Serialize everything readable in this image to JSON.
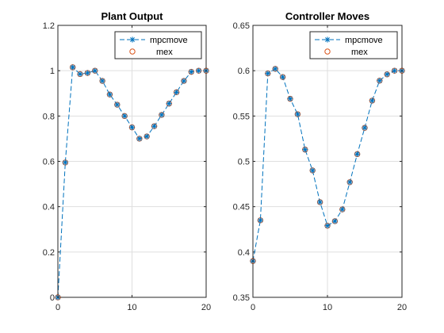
{
  "chart_data": [
    {
      "type": "line",
      "title": "Plant Output",
      "xlabel": "",
      "ylabel": "",
      "xlim": [
        0,
        20
      ],
      "ylim": [
        0,
        1.2
      ],
      "xticks": [
        "0",
        "10",
        "20"
      ],
      "yticks": [
        "0",
        "0.2",
        "0.4",
        "0.6",
        "0.8",
        "1",
        "1.2"
      ],
      "grid": true,
      "legend_position": "top-right",
      "x": [
        0,
        1,
        2,
        3,
        4,
        5,
        6,
        7,
        8,
        9,
        10,
        11,
        12,
        13,
        14,
        15,
        16,
        17,
        18,
        19,
        20
      ],
      "series": [
        {
          "name": "mpcmove",
          "style": "dashed-line-asterisk",
          "color": "#0072BD",
          "values": [
            0.0,
            0.595,
            1.015,
            0.985,
            0.99,
            1.0,
            0.955,
            0.895,
            0.85,
            0.8,
            0.75,
            0.7,
            0.71,
            0.755,
            0.805,
            0.855,
            0.905,
            0.955,
            0.995,
            1.0,
            1.0
          ]
        },
        {
          "name": "mex",
          "style": "circle-marker",
          "color": "#D95319",
          "values": [
            0.0,
            0.595,
            1.015,
            0.985,
            0.99,
            1.0,
            0.955,
            0.895,
            0.85,
            0.8,
            0.75,
            0.7,
            0.71,
            0.755,
            0.805,
            0.855,
            0.905,
            0.955,
            0.995,
            1.0,
            1.0
          ]
        }
      ]
    },
    {
      "type": "line",
      "title": "Controller Moves",
      "xlabel": "",
      "ylabel": "",
      "xlim": [
        0,
        20
      ],
      "ylim": [
        0.35,
        0.65
      ],
      "xticks": [
        "0",
        "10",
        "20"
      ],
      "yticks": [
        "0.35",
        "0.4",
        "0.45",
        "0.5",
        "0.55",
        "0.6",
        "0.65"
      ],
      "grid": true,
      "legend_position": "top-right",
      "x": [
        0,
        1,
        2,
        3,
        4,
        5,
        6,
        7,
        8,
        9,
        10,
        11,
        12,
        13,
        14,
        15,
        16,
        17,
        18,
        19,
        20
      ],
      "series": [
        {
          "name": "mpcmove",
          "style": "dashed-line-asterisk",
          "color": "#0072BD",
          "values": [
            0.39,
            0.435,
            0.597,
            0.602,
            0.593,
            0.569,
            0.552,
            0.513,
            0.49,
            0.455,
            0.429,
            0.434,
            0.447,
            0.477,
            0.508,
            0.537,
            0.567,
            0.589,
            0.596,
            0.6,
            0.6
          ]
        },
        {
          "name": "mex",
          "style": "circle-marker",
          "color": "#D95319",
          "values": [
            0.39,
            0.435,
            0.597,
            0.602,
            0.593,
            0.569,
            0.552,
            0.513,
            0.49,
            0.455,
            0.429,
            0.434,
            0.447,
            0.477,
            0.508,
            0.537,
            0.567,
            0.589,
            0.596,
            0.6,
            0.6
          ]
        }
      ]
    }
  ]
}
